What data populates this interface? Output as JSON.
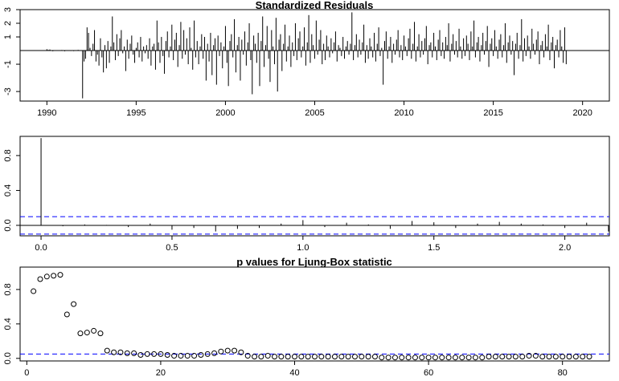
{
  "colors": {
    "ink": "#000000",
    "reference": "#0000ff",
    "background": "#ffffff"
  },
  "chart_data": [
    {
      "id": "residuals",
      "type": "bar",
      "title": "Standardized Residuals",
      "xlabel": "",
      "ylabel": "",
      "xlim": [
        1988.5,
        2021.5
      ],
      "ylim": [
        -3.7,
        3.0
      ],
      "xticks": [
        1990,
        1995,
        2000,
        2005,
        2010,
        2015,
        2020
      ],
      "yticks": [
        -3,
        -1,
        1,
        2,
        3
      ],
      "zero_line": 0,
      "x_start": 1990,
      "x_step": 0.0833333,
      "values": [
        0.1,
        0.05,
        0.08,
        0.02,
        -0.05,
        0.03,
        0.01,
        0.0,
        0.02,
        -0.02,
        0.04,
        -0.01,
        -0.05,
        0.03,
        -0.02,
        0.01,
        -0.03,
        0.02,
        -0.04,
        0.0,
        -0.02,
        0.05,
        -0.01,
        0.0,
        -3.5,
        -0.8,
        -0.6,
        1.7,
        1.3,
        0.2,
        -0.4,
        0.5,
        1.5,
        -0.8,
        -0.3,
        -1.1,
        0.9,
        -0.5,
        -1.6,
        0.4,
        -1.3,
        0.7,
        -0.9,
        0.3,
        2.5,
        0.6,
        -0.7,
        1.2,
        -0.4,
        0.9,
        1.5,
        -0.2,
        0.3,
        -1.5,
        0.8,
        -0.6,
        0.5,
        1.1,
        -0.3,
        -0.9,
        0.2,
        0.6,
        -0.5,
        1.0,
        -0.8,
        0.3,
        -0.2,
        0.4,
        -0.6,
        0.9,
        -1.1,
        0.3,
        0.5,
        -1.4,
        2.2,
        0.6,
        -0.9,
        1.0,
        -0.4,
        -1.7,
        0.7,
        1.4,
        -0.5,
        0.3,
        1.9,
        -0.7,
        0.8,
        1.3,
        -1.2,
        0.4,
        2.1,
        -0.6,
        1.5,
        -0.3,
        0.9,
        -1.0,
        1.7,
        0.2,
        -1.4,
        2.2,
        -0.5,
        0.7,
        -1.0,
        0.3,
        1.2,
        -0.6,
        1.0,
        -2.2,
        0.5,
        -0.8,
        1.3,
        -1.8,
        0.4,
        0.9,
        -2.5,
        1.1,
        -0.4,
        0.6,
        -1.3,
        0.3,
        1.8,
        -0.9,
        -2.6,
        0.7,
        1.2,
        -0.5,
        2.3,
        -1.6,
        0.4,
        1.0,
        -2.2,
        0.8,
        -0.3,
        1.4,
        -1.1,
        0.6,
        2.0,
        -0.7,
        -3.2,
        1.1,
        0.5,
        -0.9,
        1.3,
        -2.6,
        0.7,
        2.5,
        -1.2,
        0.4,
        1.8,
        -0.6,
        -2.3,
        1.5,
        0.3,
        -1.0,
        2.4,
        -3.0,
        0.8,
        1.2,
        -1.5,
        0.5,
        1.9,
        -0.8,
        0.3,
        1.1,
        -1.2,
        0.6,
        -0.4,
        2.0,
        -0.7,
        0.9,
        1.4,
        -0.5,
        0.3,
        1.7,
        -1.1,
        0.6,
        2.6,
        -0.9,
        1.2,
        0.4,
        -0.6,
        2.2,
        -0.3,
        0.8,
        1.5,
        -1.0,
        0.5,
        -0.7,
        1.1,
        0.3,
        -0.5,
        0.9,
        -0.2,
        0.6,
        1.4,
        -0.8,
        0.4,
        0.2,
        -0.4,
        1.0,
        -0.6,
        0.3,
        0.7,
        -0.3,
        0.5,
        2.8,
        -0.7,
        0.4,
        1.2,
        -0.5,
        0.8,
        -0.3,
        0.6,
        1.9,
        -0.9,
        0.4,
        -0.6,
        0.9,
        0.3,
        -0.5,
        1.3,
        -0.8,
        0.5,
        1.7,
        -0.4,
        0.2,
        -2.5,
        0.7,
        1.4,
        -0.6,
        0.3,
        1.0,
        -0.9,
        0.5,
        -0.3,
        0.8,
        1.5,
        -0.5,
        0.4,
        -0.7,
        1.1,
        0.3,
        -0.4,
        0.9,
        1.6,
        -0.6,
        0.5,
        2.1,
        -0.8,
        0.3,
        1.2,
        -0.5,
        0.7,
        -0.3,
        0.9,
        1.8,
        -1.0,
        0.4,
        0.6,
        -0.5,
        1.3,
        0.3,
        -0.7,
        0.8,
        1.5,
        -0.4,
        0.6,
        -0.6,
        1.0,
        0.4,
        2.0,
        -0.8,
        0.5,
        1.2,
        -0.3,
        0.7,
        -0.5,
        1.6,
        0.3,
        -0.6,
        0.9,
        -0.4,
        1.1,
        0.5,
        -0.7,
        1.4,
        0.3,
        2.2,
        -0.5,
        0.6,
        1.0,
        -0.8,
        0.4,
        1.3,
        -0.3,
        0.7,
        1.8,
        -1.2,
        0.5,
        0.9,
        -0.4,
        1.5,
        0.3,
        -0.6,
        0.8,
        1.2,
        -0.5,
        0.4,
        2.0,
        -0.9,
        0.6,
        1.1,
        -0.3,
        0.7,
        -1.8,
        0.5,
        1.3,
        -0.6,
        0.4,
        2.3,
        -0.8,
        0.9,
        -0.4,
        1.1,
        0.3,
        -0.6,
        1.6,
        0.5,
        -0.3,
        0.8,
        1.4,
        -1.0,
        0.4,
        0.7,
        -0.5,
        1.2,
        0.3,
        1.9,
        -0.7,
        0.6,
        1.0,
        -1.3,
        0.4,
        0.8,
        -0.5,
        1.5,
        0.3,
        -0.9,
        1.7,
        -1.0
      ]
    },
    {
      "id": "acf",
      "type": "bar",
      "title": "",
      "xlabel": "",
      "ylabel": "",
      "xlim": [
        -0.08,
        2.17
      ],
      "ylim": [
        -0.12,
        1.02
      ],
      "xticks": [
        0.0,
        0.5,
        1.0,
        1.5,
        2.0
      ],
      "xtick_labels": [
        "0.0",
        "0.5",
        "1.0",
        "1.5",
        "2.0"
      ],
      "yticks": [
        0.0,
        0.4,
        0.8
      ],
      "ytick_labels": [
        "0.0",
        "0.4",
        "0.8"
      ],
      "zero_line": 0,
      "bounds": [
        0.1,
        -0.1
      ],
      "lag_step": 0.0833333,
      "values": [
        1.0,
        -0.01,
        0.01,
        0.005,
        -0.02,
        0.02,
        -0.05,
        -0.03,
        -0.07,
        -0.04,
        -0.03,
        0.02,
        0.06,
        -0.02,
        0.03,
        0.01,
        -0.04,
        0.05,
        0.035,
        -0.03,
        0.02,
        0.04,
        0.02,
        0.01,
        -0.03,
        0.03,
        -0.07
      ]
    },
    {
      "id": "ljung_box",
      "type": "scatter",
      "title": "p values for Ljung-Box statistic",
      "xlabel": "",
      "ylabel": "",
      "xlim": [
        -1,
        87
      ],
      "ylim": [
        -0.03,
        1.06
      ],
      "xticks": [
        0,
        20,
        40,
        60,
        80
      ],
      "xtick_labels": [
        "0",
        "20",
        "40",
        "60",
        "80"
      ],
      "yticks": [
        0.0,
        0.4,
        0.8
      ],
      "ytick_labels": [
        "0.0",
        "0.4",
        "0.8"
      ],
      "reference": 0.05,
      "x": [
        1,
        2,
        3,
        4,
        5,
        6,
        7,
        8,
        9,
        10,
        11,
        12,
        13,
        14,
        15,
        16,
        17,
        18,
        19,
        20,
        21,
        22,
        23,
        24,
        25,
        26,
        27,
        28,
        29,
        30,
        31,
        32,
        33,
        34,
        35,
        36,
        37,
        38,
        39,
        40,
        41,
        42,
        43,
        44,
        45,
        46,
        47,
        48,
        49,
        50,
        51,
        52,
        53,
        54,
        55,
        56,
        57,
        58,
        59,
        60,
        61,
        62,
        63,
        64,
        65,
        66,
        67,
        68,
        69,
        70,
        71,
        72,
        73,
        74,
        75,
        76,
        77,
        78,
        79,
        80,
        81,
        82,
        83,
        84
      ],
      "y": [
        0.78,
        0.92,
        0.95,
        0.96,
        0.97,
        0.51,
        0.63,
        0.29,
        0.3,
        0.32,
        0.29,
        0.09,
        0.07,
        0.07,
        0.06,
        0.06,
        0.04,
        0.05,
        0.05,
        0.05,
        0.04,
        0.03,
        0.03,
        0.03,
        0.03,
        0.04,
        0.05,
        0.06,
        0.08,
        0.09,
        0.09,
        0.07,
        0.03,
        0.02,
        0.02,
        0.03,
        0.02,
        0.02,
        0.02,
        0.02,
        0.02,
        0.02,
        0.02,
        0.02,
        0.02,
        0.02,
        0.02,
        0.02,
        0.02,
        0.02,
        0.02,
        0.02,
        0.01,
        0.01,
        0.01,
        0.01,
        0.01,
        0.01,
        0.01,
        0.01,
        0.01,
        0.01,
        0.01,
        0.01,
        0.01,
        0.01,
        0.01,
        0.01,
        0.02,
        0.02,
        0.02,
        0.02,
        0.02,
        0.02,
        0.03,
        0.03,
        0.02,
        0.02,
        0.02,
        0.02,
        0.02,
        0.02,
        0.02,
        0.02
      ]
    }
  ]
}
